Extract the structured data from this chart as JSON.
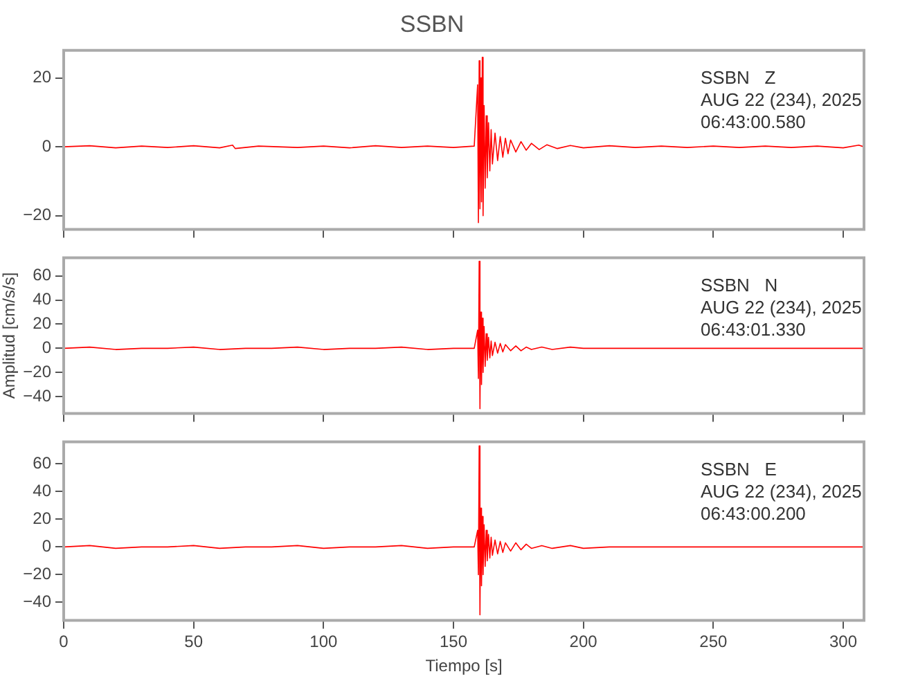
{
  "chart_data": [
    {
      "type": "line",
      "title": "SSBN",
      "annotations": [
        "SSBN   Z",
        "AUG 22 (234), 2025",
        "06:43:00.580"
      ],
      "xlim": [
        0,
        308
      ],
      "xticks": [
        0,
        50,
        100,
        150,
        200,
        250,
        300
      ],
      "ylim": [
        -24,
        28
      ],
      "yticks": [
        -20,
        0,
        20
      ],
      "tick_labels": "y",
      "marker": "none",
      "series": [
        {
          "color": "#ff0000",
          "x": [
            0,
            10,
            20,
            30,
            40,
            50,
            60,
            65,
            66,
            75,
            90,
            100,
            110,
            120,
            130,
            140,
            150,
            158,
            159.3,
            159.6,
            159.9,
            160.2,
            160.5,
            160.8,
            161.1,
            161.4,
            161.8,
            162.2,
            162.6,
            163,
            163.5,
            164,
            164.5,
            165,
            166,
            167,
            168,
            169,
            170,
            171,
            172,
            174,
            176,
            178,
            180,
            183,
            186,
            190,
            195,
            200,
            210,
            220,
            230,
            240,
            250,
            260,
            270,
            280,
            290,
            300,
            306,
            308
          ],
          "values": [
            0,
            0.3,
            -0.3,
            0.2,
            -0.2,
            0.3,
            -0.3,
            0.5,
            -0.5,
            0.2,
            -0.2,
            0.2,
            -0.3,
            0.3,
            -0.2,
            0.2,
            -0.2,
            0.2,
            18,
            -22,
            25,
            -18,
            20,
            -16,
            26,
            -20,
            12,
            -12,
            9,
            -9,
            7,
            -7,
            5,
            -5,
            4,
            -4,
            3,
            -3,
            2.5,
            -2,
            2,
            -1.5,
            1.5,
            -1,
            1,
            -0.8,
            0.6,
            -0.5,
            0.4,
            -0.3,
            0.3,
            -0.2,
            0.2,
            -0.2,
            0.2,
            -0.2,
            0.2,
            -0.2,
            0.2,
            -0.3,
            0.5,
            0
          ]
        }
      ]
    },
    {
      "type": "line",
      "ylabel": "Amplitud [cm/s/s]",
      "annotations": [
        "SSBN   N",
        "AUG 22 (234), 2025",
        "06:43:01.330"
      ],
      "xlim": [
        0,
        308
      ],
      "xticks": [
        0,
        50,
        100,
        150,
        200,
        250,
        300
      ],
      "ylim": [
        -54,
        75
      ],
      "yticks": [
        -40,
        -20,
        0,
        20,
        40,
        60
      ],
      "tick_labels": "y",
      "marker": "none",
      "series": [
        {
          "color": "#ff0000",
          "x": [
            0,
            10,
            20,
            30,
            40,
            50,
            60,
            70,
            80,
            90,
            100,
            110,
            120,
            130,
            140,
            150,
            158,
            159.3,
            159.6,
            159.9,
            160.2,
            160.5,
            160.8,
            161.1,
            161.4,
            161.8,
            162.2,
            162.6,
            163,
            163.5,
            164,
            164.5,
            165,
            166,
            167,
            168,
            169,
            170,
            172,
            174,
            176,
            178,
            180,
            184,
            188,
            195,
            200,
            210,
            220,
            230,
            240,
            250,
            260,
            270,
            280,
            290,
            300,
            308
          ],
          "values": [
            0,
            1,
            -1,
            0,
            0,
            1,
            -1,
            0,
            0,
            1,
            -1,
            0,
            0,
            1,
            -1,
            0,
            0,
            15,
            -25,
            72,
            -50,
            30,
            -30,
            25,
            -20,
            18,
            -15,
            12,
            -10,
            9,
            -8,
            6,
            -6,
            5,
            -4,
            4,
            -3,
            3,
            -2,
            2,
            -2,
            1,
            -1,
            1,
            -1,
            1,
            0,
            0,
            0,
            0,
            0,
            0,
            0,
            0,
            0,
            0,
            0,
            0
          ]
        }
      ]
    },
    {
      "type": "line",
      "xlabel": "Tiempo [s]",
      "annotations": [
        "SSBN   E",
        "AUG 22 (234), 2025",
        "06:43:00.200"
      ],
      "xlim": [
        0,
        308
      ],
      "xticks": [
        0,
        50,
        100,
        150,
        200,
        250,
        300
      ],
      "ylim": [
        -53,
        76
      ],
      "yticks": [
        -40,
        -20,
        0,
        20,
        40,
        60
      ],
      "marker": "none",
      "series": [
        {
          "color": "#ff0000",
          "x": [
            0,
            10,
            20,
            30,
            40,
            50,
            60,
            70,
            80,
            90,
            100,
            110,
            120,
            130,
            140,
            150,
            158,
            159.3,
            159.6,
            159.9,
            160.2,
            160.5,
            160.8,
            161.1,
            161.4,
            161.8,
            162.2,
            162.6,
            163,
            163.5,
            164,
            164.5,
            165,
            166,
            167,
            168,
            169,
            170,
            172,
            174,
            176,
            178,
            180,
            184,
            188,
            195,
            200,
            210,
            220,
            230,
            240,
            250,
            260,
            270,
            280,
            290,
            300,
            308
          ],
          "values": [
            0,
            1,
            -1,
            0,
            0,
            1,
            -1,
            0,
            0,
            1,
            -1,
            0,
            0,
            1,
            -1,
            0,
            0,
            12,
            -20,
            73,
            -49,
            28,
            -28,
            22,
            -20,
            16,
            -14,
            12,
            -10,
            9,
            -8,
            7,
            -6,
            5,
            -5,
            4,
            -4,
            3,
            -3,
            3,
            -2,
            2,
            -1,
            1,
            -1,
            1,
            -1,
            0,
            0,
            0,
            0,
            0,
            0,
            0,
            0,
            0,
            0,
            0
          ]
        }
      ]
    }
  ]
}
